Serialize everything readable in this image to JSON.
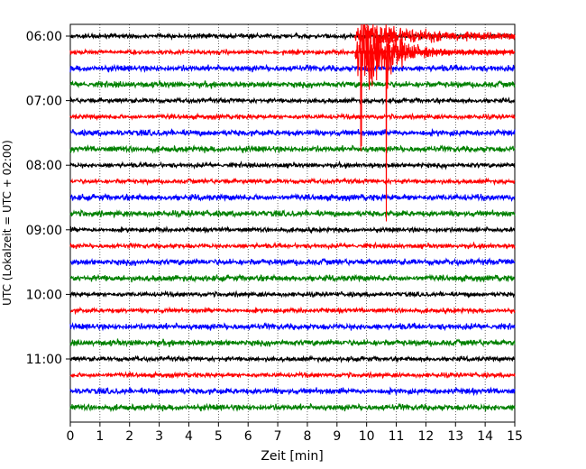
{
  "chart_data": {
    "type": "line",
    "title": "",
    "xlabel": "Zeit  [min]",
    "ylabel": "UTC (Lokalzeit = UTC + 02:00)",
    "xlim": [
      0,
      15
    ],
    "x_ticks": [
      "0",
      "1",
      "2",
      "3",
      "4",
      "5",
      "6",
      "7",
      "8",
      "9",
      "10",
      "11",
      "12",
      "13",
      "14",
      "15"
    ],
    "y_ticks": [
      "06:00",
      "07:00",
      "08:00",
      "09:00",
      "10:00",
      "11:00"
    ],
    "grid": "vertical-dotted",
    "trace_colors": [
      "#000000",
      "#ff0000",
      "#0000ff",
      "#008000"
    ],
    "trace_count": 24,
    "trace_interval_minutes": 15,
    "start_time": "06:00",
    "events": [
      {
        "trace": 0,
        "start_min": 9.6,
        "peak_min": 10.2,
        "color": "#ff0000"
      },
      {
        "trace": 1,
        "start_min": 9.6,
        "peak_min": 10.0,
        "color": "#ff0000"
      }
    ]
  }
}
